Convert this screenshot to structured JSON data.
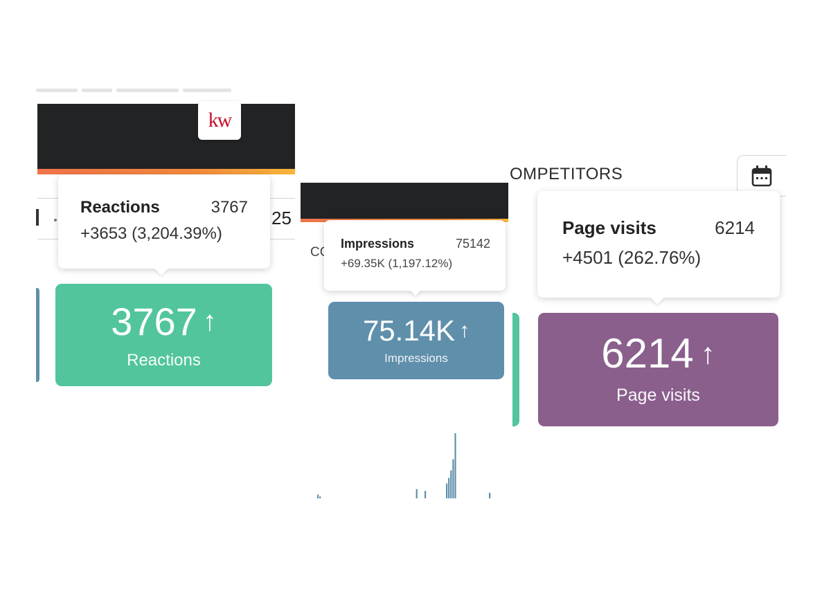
{
  "panel_reactions": {
    "logo_text": "kw",
    "side_number": "25",
    "tooltip": {
      "label": "Reactions",
      "value": "3767",
      "change": "+3653 (3,204.39%)"
    },
    "card": {
      "value": "3767",
      "arrow": "↑",
      "label": "Reactions",
      "color": "#52c59c"
    }
  },
  "panel_impressions": {
    "partial_text": "CC",
    "tooltip": {
      "label": "Impressions",
      "value": "75142",
      "change": "+69.35K (1,197.12%)"
    },
    "card": {
      "value": "75.14K",
      "arrow": "↑",
      "label": "Impressions",
      "color": "#5f8fab"
    }
  },
  "panel_page_visits": {
    "section_title": "OMPETITORS",
    "calendar_icon": "calendar-icon",
    "tooltip": {
      "label": "Page visits",
      "value": "6214",
      "change": "+4501 (262.76%)"
    },
    "card": {
      "value": "6214",
      "arrow": "↑",
      "label": "Page visits",
      "color": "#8a5f8c"
    }
  },
  "chart_data": {
    "type": "bar",
    "note_series_color": "#5f8fab",
    "values": [
      2,
      1,
      0,
      0,
      0,
      0,
      0,
      0,
      0,
      0,
      0,
      0,
      0,
      0,
      0,
      0,
      0,
      0,
      0,
      0,
      0,
      0,
      0,
      0,
      0,
      0,
      0,
      0,
      0,
      0,
      0,
      0,
      0,
      0,
      0,
      0,
      0,
      0,
      0,
      0,
      0,
      0,
      0,
      0,
      0,
      0,
      5,
      0,
      0,
      0,
      4,
      0,
      0,
      0,
      0,
      0,
      0,
      0,
      0,
      0,
      8,
      11,
      15,
      21,
      35,
      0,
      0,
      0,
      0,
      0,
      0,
      0,
      0,
      0,
      0,
      0,
      0,
      0,
      0,
      0,
      3
    ]
  }
}
